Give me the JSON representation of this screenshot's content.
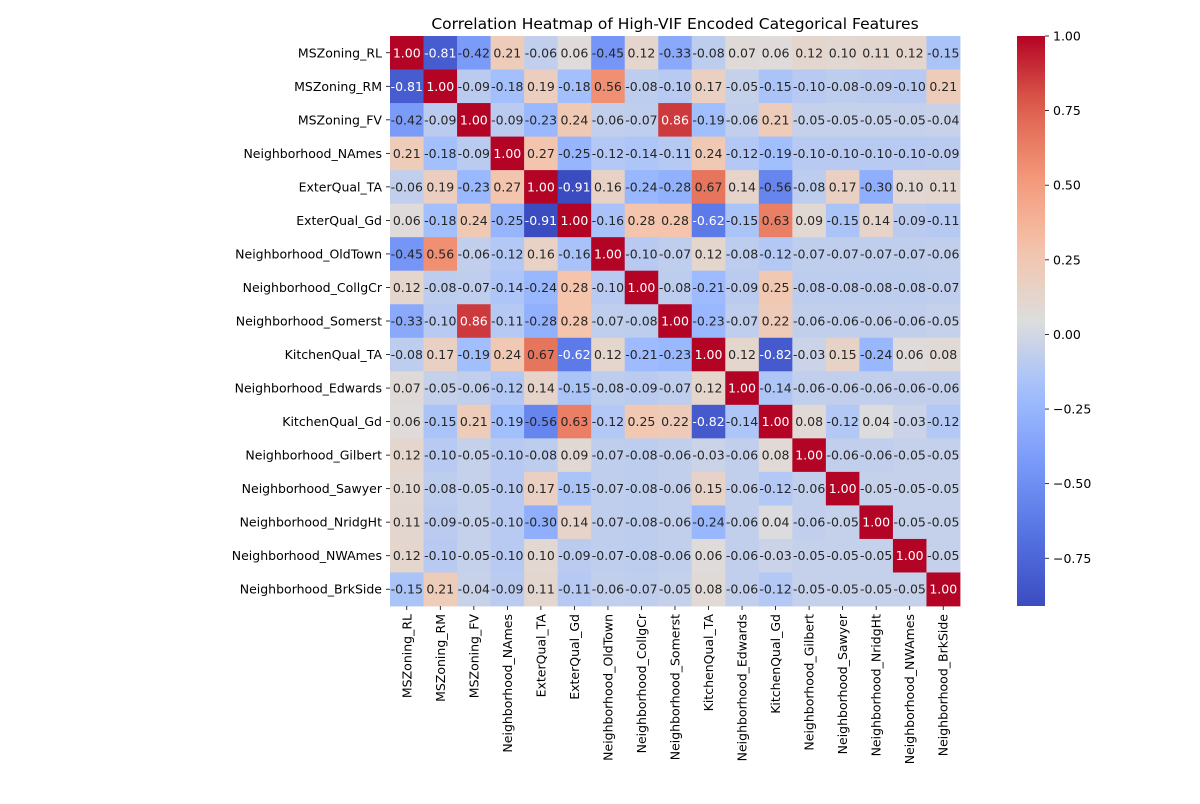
{
  "chart_data": {
    "type": "heatmap",
    "title": "Correlation Heatmap of High-VIF Encoded Categorical Features",
    "features": [
      "MSZoning_RL",
      "MSZoning_RM",
      "MSZoning_FV",
      "Neighborhood_NAmes",
      "ExterQual_TA",
      "ExterQual_Gd",
      "Neighborhood_OldTown",
      "Neighborhood_CollgCr",
      "Neighborhood_Somerst",
      "KitchenQual_TA",
      "Neighborhood_Edwards",
      "KitchenQual_Gd",
      "Neighborhood_Gilbert",
      "Neighborhood_Sawyer",
      "Neighborhood_NridgHt",
      "Neighborhood_NWAmes",
      "Neighborhood_BrkSide"
    ],
    "matrix": [
      [
        1.0,
        -0.81,
        -0.42,
        0.21,
        -0.06,
        0.06,
        -0.45,
        0.12,
        -0.33,
        -0.08,
        0.07,
        0.06,
        0.12,
        0.1,
        0.11,
        0.12,
        -0.15
      ],
      [
        -0.81,
        1.0,
        -0.09,
        -0.18,
        0.19,
        -0.18,
        0.56,
        -0.08,
        -0.1,
        0.17,
        -0.05,
        -0.15,
        -0.1,
        -0.08,
        -0.09,
        -0.1,
        0.21
      ],
      [
        -0.42,
        -0.09,
        1.0,
        -0.09,
        -0.23,
        0.24,
        -0.06,
        -0.07,
        0.86,
        -0.19,
        -0.06,
        0.21,
        -0.05,
        -0.05,
        -0.05,
        -0.05,
        -0.04
      ],
      [
        0.21,
        -0.18,
        -0.09,
        1.0,
        0.27,
        -0.25,
        -0.12,
        -0.14,
        -0.11,
        0.24,
        -0.12,
        -0.19,
        -0.1,
        -0.1,
        -0.1,
        -0.1,
        -0.09
      ],
      [
        -0.06,
        0.19,
        -0.23,
        0.27,
        1.0,
        -0.91,
        0.16,
        -0.24,
        -0.28,
        0.67,
        0.14,
        -0.56,
        -0.08,
        0.17,
        -0.3,
        0.1,
        0.11
      ],
      [
        0.06,
        -0.18,
        0.24,
        -0.25,
        -0.91,
        1.0,
        -0.16,
        0.28,
        0.28,
        -0.62,
        -0.15,
        0.63,
        0.09,
        -0.15,
        0.14,
        -0.09,
        -0.11
      ],
      [
        -0.45,
        0.56,
        -0.06,
        -0.12,
        0.16,
        -0.16,
        1.0,
        -0.1,
        -0.07,
        0.12,
        -0.08,
        -0.12,
        -0.07,
        -0.07,
        -0.07,
        -0.07,
        -0.06
      ],
      [
        0.12,
        -0.08,
        -0.07,
        -0.14,
        -0.24,
        0.28,
        -0.1,
        1.0,
        -0.08,
        -0.21,
        -0.09,
        0.25,
        -0.08,
        -0.08,
        -0.08,
        -0.08,
        -0.07
      ],
      [
        -0.33,
        -0.1,
        0.86,
        -0.11,
        -0.28,
        0.28,
        -0.07,
        -0.08,
        1.0,
        -0.23,
        -0.07,
        0.22,
        -0.06,
        -0.06,
        -0.06,
        -0.06,
        -0.05
      ],
      [
        -0.08,
        0.17,
        -0.19,
        0.24,
        0.67,
        -0.62,
        0.12,
        -0.21,
        -0.23,
        1.0,
        0.12,
        -0.82,
        -0.03,
        0.15,
        -0.24,
        0.06,
        0.08
      ],
      [
        0.07,
        -0.05,
        -0.06,
        -0.12,
        0.14,
        -0.15,
        -0.08,
        -0.09,
        -0.07,
        0.12,
        1.0,
        -0.14,
        -0.06,
        -0.06,
        -0.06,
        -0.06,
        -0.06
      ],
      [
        0.06,
        -0.15,
        0.21,
        -0.19,
        -0.56,
        0.63,
        -0.12,
        0.25,
        0.22,
        -0.82,
        -0.14,
        1.0,
        0.08,
        -0.12,
        0.04,
        -0.03,
        -0.12
      ],
      [
        0.12,
        -0.1,
        -0.05,
        -0.1,
        -0.08,
        0.09,
        -0.07,
        -0.08,
        -0.06,
        -0.03,
        -0.06,
        0.08,
        1.0,
        -0.06,
        -0.06,
        -0.05,
        -0.05
      ],
      [
        0.1,
        -0.08,
        -0.05,
        -0.1,
        0.17,
        -0.15,
        -0.07,
        -0.08,
        -0.06,
        0.15,
        -0.06,
        -0.12,
        -0.06,
        1.0,
        -0.05,
        -0.05,
        -0.05
      ],
      [
        0.11,
        -0.09,
        -0.05,
        -0.1,
        -0.3,
        0.14,
        -0.07,
        -0.08,
        -0.06,
        -0.24,
        -0.06,
        0.04,
        -0.06,
        -0.05,
        1.0,
        -0.05,
        -0.05
      ],
      [
        0.12,
        -0.1,
        -0.05,
        -0.1,
        0.1,
        -0.09,
        -0.07,
        -0.08,
        -0.06,
        0.06,
        -0.06,
        -0.03,
        -0.05,
        -0.05,
        -0.05,
        1.0,
        -0.05
      ],
      [
        -0.15,
        0.21,
        -0.04,
        -0.09,
        0.11,
        -0.11,
        -0.06,
        -0.07,
        -0.05,
        0.08,
        -0.06,
        -0.12,
        -0.05,
        -0.05,
        -0.05,
        -0.05,
        1.0
      ]
    ],
    "value_format": "0.00",
    "colormap": "coolwarm",
    "color_range": [
      -0.91,
      1.0
    ],
    "colorbar_ticks": [
      1.0,
      0.75,
      0.5,
      0.25,
      0.0,
      -0.25,
      -0.5,
      -0.75
    ],
    "colorbar_tick_labels": [
      "1.00",
      "0.75",
      "0.50",
      "0.25",
      "0.00",
      "−0.25",
      "−0.50",
      "−0.75"
    ],
    "colorbar_position": "right",
    "grid": false
  }
}
